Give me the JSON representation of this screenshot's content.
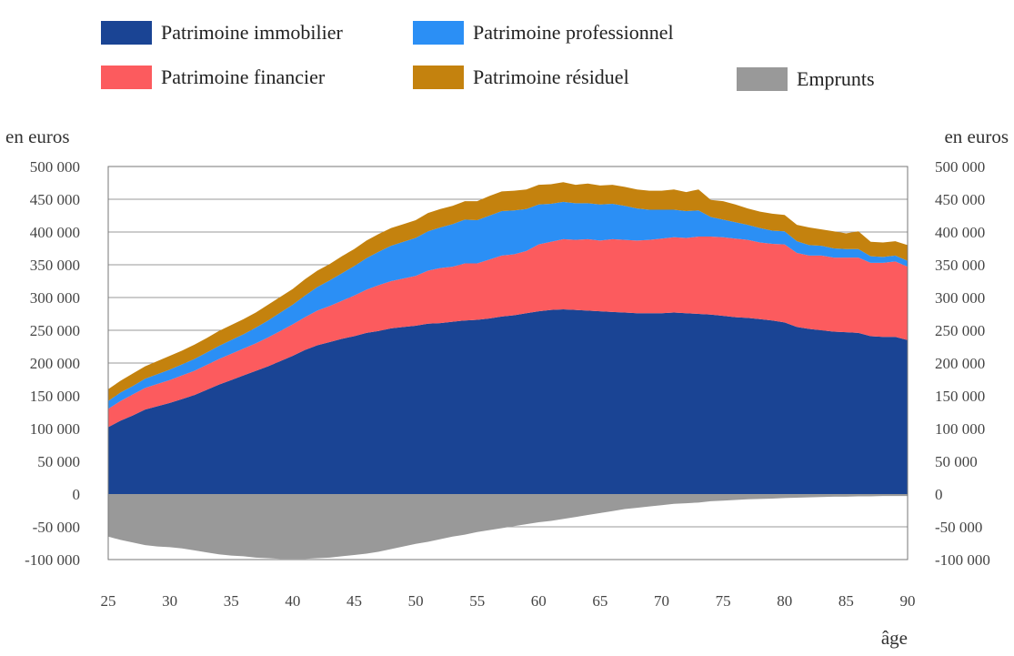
{
  "chart_data": {
    "type": "area",
    "y_unit_left": "en euros",
    "y_unit_right": "en euros",
    "xlabel": "âge",
    "x": [
      25,
      26,
      27,
      28,
      29,
      30,
      31,
      32,
      33,
      34,
      35,
      36,
      37,
      38,
      39,
      40,
      41,
      42,
      43,
      44,
      45,
      46,
      47,
      48,
      49,
      50,
      51,
      52,
      53,
      54,
      55,
      56,
      57,
      58,
      59,
      60,
      61,
      62,
      63,
      64,
      65,
      66,
      67,
      68,
      69,
      70,
      71,
      72,
      73,
      74,
      75,
      76,
      77,
      78,
      79,
      80,
      81,
      82,
      83,
      84,
      85,
      86,
      87,
      88,
      89,
      90
    ],
    "xlim": [
      25,
      90
    ],
    "ylim": [
      -100000,
      500000
    ],
    "x_ticks": [
      25,
      30,
      35,
      40,
      45,
      50,
      55,
      60,
      65,
      70,
      75,
      80,
      85,
      90
    ],
    "x_tick_labels": [
      "25",
      "30",
      "35",
      "40",
      "45",
      "50",
      "55",
      "60",
      "65",
      "70",
      "75",
      "80",
      "85",
      "90"
    ],
    "y_ticks": [
      500000,
      450000,
      400000,
      350000,
      300000,
      250000,
      200000,
      150000,
      100000,
      50000,
      0,
      -50000,
      -100000
    ],
    "y_tick_labels": [
      "500 000",
      "450 000",
      "400 000",
      "350 000",
      "300 000",
      "250 000",
      "200 000",
      "150 000",
      "100 000",
      "50 000",
      "0",
      "-50 000",
      "-100 000"
    ],
    "legend": [
      {
        "key": "immobilier",
        "label": "Patrimoine immobilier",
        "color": "#1A4494"
      },
      {
        "key": "professionnel",
        "label": "Patrimoine professionnel",
        "color": "#2B8FF5"
      },
      {
        "key": "financier",
        "label": "Patrimoine financier",
        "color": "#FC5B5E"
      },
      {
        "key": "residuel",
        "label": "Patrimoine résiduel",
        "color": "#C4820E"
      },
      {
        "key": "emprunts",
        "label": "Emprunts",
        "color": "#999999"
      }
    ],
    "stack_order": [
      "immobilier",
      "financier",
      "professionnel",
      "residuel"
    ],
    "series": [
      {
        "key": "immobilier",
        "name": "Patrimoine immobilier",
        "color": "#1A4494",
        "values": [
          102000,
          112000,
          120000,
          129000,
          134000,
          139000,
          145000,
          151000,
          159000,
          167000,
          174000,
          181000,
          188000,
          195000,
          203000,
          211000,
          220000,
          227000,
          232000,
          237000,
          241000,
          246000,
          249000,
          253000,
          255000,
          257000,
          260000,
          261000,
          263000,
          265000,
          266000,
          268000,
          271000,
          273000,
          276000,
          279000,
          281000,
          282000,
          281000,
          280000,
          279000,
          278000,
          277000,
          276000,
          276000,
          276000,
          277000,
          276000,
          275000,
          274000,
          272000,
          270000,
          269000,
          267000,
          265000,
          262000,
          255000,
          252000,
          250000,
          248000,
          247000,
          246000,
          241000,
          240000,
          240000,
          235000
        ]
      },
      {
        "key": "financier",
        "name": "Patrimoine financier",
        "color": "#FC5B5E",
        "values": [
          28000,
          30000,
          32000,
          33000,
          34000,
          35000,
          36000,
          37000,
          38000,
          39000,
          40000,
          41000,
          42000,
          44000,
          46000,
          48000,
          50000,
          53000,
          55000,
          58000,
          62000,
          66000,
          70000,
          72000,
          74000,
          76000,
          81000,
          84000,
          84000,
          87000,
          86000,
          90000,
          93000,
          93000,
          95000,
          102000,
          104000,
          107000,
          107000,
          109000,
          108000,
          111000,
          111000,
          111000,
          112000,
          114000,
          115000,
          115000,
          118000,
          119000,
          120000,
          120000,
          119000,
          117000,
          117000,
          119000,
          113000,
          112000,
          114000,
          113000,
          114000,
          115000,
          112000,
          113000,
          115000,
          112000
        ]
      },
      {
        "key": "professionnel",
        "name": "Patrimoine professionnel",
        "color": "#2B8FF5",
        "values": [
          12000,
          13000,
          13000,
          14000,
          15000,
          16000,
          17000,
          18000,
          19000,
          20000,
          21000,
          22000,
          24000,
          26000,
          28000,
          30000,
          33000,
          36000,
          39000,
          42000,
          45000,
          48000,
          51000,
          54000,
          56000,
          58000,
          60000,
          62000,
          65000,
          67000,
          66000,
          67000,
          68000,
          67000,
          64000,
          61000,
          58000,
          57000,
          56000,
          55000,
          55000,
          54000,
          52000,
          49000,
          46000,
          44000,
          42000,
          41000,
          40000,
          30000,
          27000,
          25000,
          23000,
          22000,
          20000,
          20000,
          18000,
          16000,
          15000,
          14000,
          13000,
          13000,
          10000,
          9000,
          9000,
          9000
        ]
      },
      {
        "key": "residuel",
        "name": "Patrimoine résiduel",
        "color": "#C4820E",
        "values": [
          18000,
          18000,
          19000,
          19000,
          20000,
          21000,
          21000,
          22000,
          22000,
          23000,
          23000,
          23000,
          23000,
          24000,
          24000,
          24000,
          25000,
          25000,
          25000,
          26000,
          26000,
          27000,
          27000,
          27000,
          27000,
          27000,
          28000,
          28000,
          28000,
          28000,
          29000,
          30000,
          30000,
          30000,
          30000,
          30000,
          30000,
          30000,
          28000,
          30000,
          29000,
          29000,
          29000,
          29000,
          29000,
          29000,
          31000,
          29000,
          32000,
          26000,
          28000,
          27000,
          25000,
          25000,
          26000,
          25000,
          25000,
          27000,
          25000,
          26000,
          24000,
          27000,
          22000,
          22000,
          22000,
          24000
        ]
      },
      {
        "key": "emprunts",
        "name": "Emprunts",
        "color": "#999999",
        "values": [
          -65000,
          -70000,
          -74000,
          -78000,
          -80000,
          -81000,
          -83000,
          -86000,
          -89000,
          -92000,
          -94000,
          -95000,
          -97000,
          -98000,
          -99000,
          -99000,
          -99000,
          -98000,
          -97000,
          -95000,
          -93000,
          -91000,
          -88000,
          -84000,
          -80000,
          -76000,
          -73000,
          -69000,
          -65000,
          -62000,
          -58000,
          -55000,
          -52000,
          -49000,
          -46000,
          -43000,
          -41000,
          -38000,
          -35000,
          -32000,
          -29000,
          -26000,
          -23000,
          -21000,
          -19000,
          -17000,
          -15000,
          -14000,
          -13000,
          -11000,
          -10000,
          -9000,
          -8000,
          -7500,
          -7000,
          -6000,
          -5500,
          -5000,
          -4500,
          -4000,
          -4000,
          -3500,
          -3500,
          -3000,
          -3000,
          -3000
        ]
      }
    ]
  }
}
